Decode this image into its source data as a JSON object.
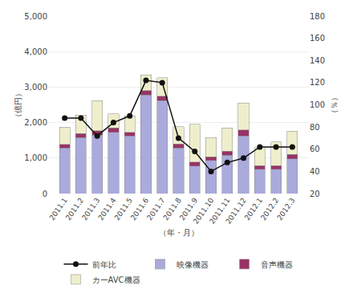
{
  "chart_data": {
    "type": "bar",
    "stacked": true,
    "categories": [
      "2011.1",
      "2011.2",
      "2011.3",
      "2011.4",
      "2011.5",
      "2011.6",
      "2011.7",
      "2011.8",
      "2011.9",
      "2011.10",
      "2011.11",
      "2011.12",
      "2012.1",
      "2012.2",
      "2012.3"
    ],
    "series": [
      {
        "name": "映像機器",
        "color": "#aaaadd",
        "values": [
          1280,
          1580,
          1650,
          1730,
          1620,
          2780,
          2620,
          1280,
          780,
          930,
          1080,
          1620,
          680,
          680,
          980
        ]
      },
      {
        "name": "音声機器",
        "color": "#993366",
        "values": [
          110,
          110,
          120,
          120,
          110,
          120,
          120,
          120,
          110,
          110,
          110,
          170,
          110,
          110,
          120
        ]
      },
      {
        "name": "カーAVC機器",
        "color": "#eeeecc",
        "values": [
          480,
          520,
          850,
          390,
          460,
          440,
          520,
          480,
          1060,
          540,
          660,
          760,
          510,
          660,
          660
        ]
      },
      {
        "name": "前年比",
        "type": "line",
        "axis": "y2",
        "color": "#111111",
        "marker": "circle",
        "line_style": "solid",
        "values": [
          88,
          88,
          72,
          84,
          90,
          122,
          120,
          70,
          58,
          40,
          48,
          52,
          62,
          62,
          62
        ]
      }
    ],
    "xlabel": "（年・月）",
    "ylabel": "（億円）",
    "y2label": "（％）",
    "ylim": [
      0,
      5000
    ],
    "yticks": [
      0,
      {
        "value": 1000,
        "label": "1,000"
      },
      {
        "value": 2000,
        "label": "2,000"
      },
      {
        "value": 3000,
        "label": "3,000"
      },
      {
        "value": 4000,
        "label": "4,000"
      },
      {
        "value": 5000,
        "label": "5,000"
      }
    ],
    "y2lim": [
      20,
      180
    ],
    "y2ticks": [
      20,
      40,
      60,
      80,
      100,
      120,
      140,
      160,
      180
    ],
    "grid": true,
    "legend": "bottom"
  }
}
